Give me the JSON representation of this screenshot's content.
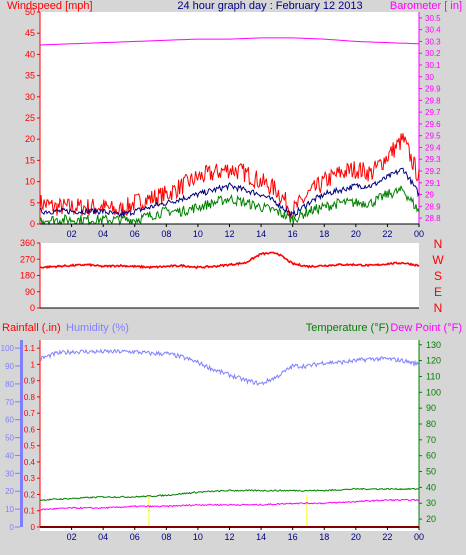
{
  "header": {
    "left_title": "Windspeed [mph]",
    "center_title": "24 hour graph day : February 12 2013",
    "right_title": "Barometer [ in]"
  },
  "colors": {
    "background": "#d6d6d6",
    "plot": "#ffffff",
    "red": "#ff0000",
    "magenta": "#ff00ff",
    "navy": "#000080",
    "green": "#008000",
    "humidity": "#8080ff",
    "yellow": "#ffff00"
  },
  "chart_data": [
    {
      "type": "line",
      "title": "24 hour graph day : February 12 2013",
      "x_ticks": [
        "02",
        "04",
        "06",
        "08",
        "10",
        "12",
        "14",
        "16",
        "18",
        "20",
        "22",
        "00"
      ],
      "y_left_label": "Windspeed [mph]",
      "y_left_ticks": [
        0,
        5,
        10,
        15,
        20,
        25,
        30,
        35,
        40,
        45,
        50
      ],
      "ylim_left": [
        0,
        50
      ],
      "y_right_label": "Barometer [ in]",
      "y_right_ticks": [
        "28.8",
        "28.9",
        "29",
        "29.1",
        "29.2",
        "29.3",
        "29.4",
        "29.5",
        "29.6",
        "29.7",
        "29.8",
        "29.9",
        "30",
        "30.1",
        "30.2",
        "30.3",
        "30.4",
        "30.5"
      ],
      "ylim_right": [
        28.75,
        30.55
      ],
      "grid": false,
      "series": [
        {
          "axis": "left",
          "role": "wind-gust",
          "color": "#ff0000",
          "hours": [
            0,
            1,
            2,
            3,
            4,
            5,
            6,
            7,
            8,
            9,
            10,
            11,
            12,
            13,
            14,
            15,
            16,
            17,
            18,
            19,
            20,
            21,
            22,
            23,
            24
          ],
          "values": [
            5,
            4,
            4,
            4,
            4,
            3,
            5,
            6,
            7,
            9,
            11,
            12,
            13,
            12,
            10,
            8,
            3,
            7,
            10,
            12,
            13,
            12,
            16,
            20,
            11
          ]
        },
        {
          "axis": "left",
          "role": "wind-avg",
          "color": "#000080",
          "hours": [
            0,
            1,
            2,
            3,
            4,
            5,
            6,
            7,
            8,
            9,
            10,
            11,
            12,
            13,
            14,
            15,
            16,
            17,
            18,
            19,
            20,
            21,
            22,
            23,
            24
          ],
          "values": [
            3,
            3,
            3,
            3,
            3,
            2,
            3,
            4,
            5,
            6,
            7,
            8,
            9,
            8,
            7,
            5,
            2,
            5,
            7,
            8,
            9,
            9,
            11,
            13,
            7
          ]
        },
        {
          "axis": "left",
          "role": "wind-min",
          "color": "#008000",
          "hours": [
            0,
            1,
            2,
            3,
            4,
            5,
            6,
            7,
            8,
            9,
            10,
            11,
            12,
            13,
            14,
            15,
            16,
            17,
            18,
            19,
            20,
            21,
            22,
            23,
            24
          ],
          "values": [
            1,
            1,
            1,
            1,
            1,
            1,
            1,
            2,
            3,
            3,
            4,
            5,
            6,
            5,
            4,
            3,
            1,
            3,
            4,
            5,
            5,
            5,
            7,
            8,
            3
          ]
        },
        {
          "axis": "right",
          "role": "barometer",
          "color": "#ff00ff",
          "hours": [
            0,
            2,
            4,
            6,
            8,
            10,
            12,
            14,
            16,
            18,
            20,
            22,
            24
          ],
          "values": [
            30.27,
            30.28,
            30.29,
            30.3,
            30.31,
            30.32,
            30.32,
            30.33,
            30.33,
            30.32,
            30.3,
            30.29,
            30.28
          ]
        }
      ]
    },
    {
      "type": "line",
      "y_ticks": [
        0,
        90,
        180,
        270,
        360
      ],
      "ylim": [
        0,
        360
      ],
      "y_right_labels": [
        "N",
        "W",
        "S",
        "E",
        "N"
      ],
      "grid": false,
      "series": [
        {
          "role": "wind-direction",
          "color": "#ff0000",
          "hours": [
            0,
            1,
            2,
            3,
            4,
            5,
            6,
            7,
            8,
            9,
            10,
            11,
            12,
            13,
            14,
            15,
            16,
            17,
            18,
            19,
            20,
            21,
            22,
            23,
            24
          ],
          "values": [
            225,
            230,
            235,
            240,
            230,
            235,
            230,
            225,
            230,
            235,
            225,
            230,
            240,
            250,
            300,
            305,
            245,
            230,
            235,
            240,
            240,
            235,
            245,
            250,
            235
          ]
        }
      ]
    },
    {
      "type": "line",
      "x_ticks": [
        "02",
        "04",
        "06",
        "08",
        "10",
        "12",
        "14",
        "16",
        "18",
        "20",
        "22",
        "00"
      ],
      "left_header": "Rainfall (.in)",
      "center_header": "Humidity (%)",
      "right_header": "Temperature (°F)",
      "far_right_header": "Dew Point (°F)",
      "y_humidity_ticks": [
        0,
        10,
        20,
        30,
        40,
        50,
        60,
        70,
        80,
        90,
        100
      ],
      "y_rain_ticks": [
        "0",
        "0.1",
        "0.2",
        "0.3",
        "0.4",
        "0.5",
        "0.6",
        "0.7",
        "0.8",
        "0.9",
        "1",
        "1.1"
      ],
      "ylim_rain": [
        0,
        1.15
      ],
      "y_temp_ticks": [
        20,
        30,
        40,
        50,
        60,
        70,
        80,
        90,
        100,
        110,
        120,
        130
      ],
      "ylim_temp": [
        15,
        133
      ],
      "grid": false,
      "series": [
        {
          "axis": "humidity",
          "role": "humidity",
          "color": "#8080ff",
          "hours": [
            0,
            1,
            2,
            3,
            4,
            5,
            6,
            7,
            8,
            9,
            10,
            11,
            12,
            13,
            14,
            15,
            16,
            17,
            18,
            19,
            20,
            21,
            22,
            23,
            24
          ],
          "values": [
            94,
            97,
            98,
            98,
            98,
            98,
            98,
            97,
            97,
            95,
            92,
            88,
            85,
            82,
            80,
            84,
            90,
            90,
            92,
            92,
            93,
            94,
            94,
            93,
            91
          ]
        },
        {
          "axis": "temp",
          "role": "temperature",
          "color": "#008000",
          "hours": [
            0,
            2,
            4,
            6,
            8,
            10,
            12,
            14,
            16,
            18,
            20,
            22,
            24
          ],
          "values": [
            32,
            33,
            34,
            34,
            35,
            37,
            38,
            38,
            38,
            38,
            39,
            39,
            39
          ]
        },
        {
          "axis": "temp",
          "role": "dew-point",
          "color": "#ff00ff",
          "hours": [
            0,
            2,
            4,
            6,
            8,
            10,
            12,
            14,
            16,
            18,
            20,
            22,
            24
          ],
          "values": [
            26,
            27,
            27,
            28,
            28,
            29,
            29,
            29,
            30,
            30,
            31,
            32,
            32
          ]
        },
        {
          "axis": "rain",
          "role": "rainfall",
          "color": "#ff0000",
          "hours": [
            0,
            24
          ],
          "values": [
            0,
            0
          ]
        }
      ]
    }
  ]
}
